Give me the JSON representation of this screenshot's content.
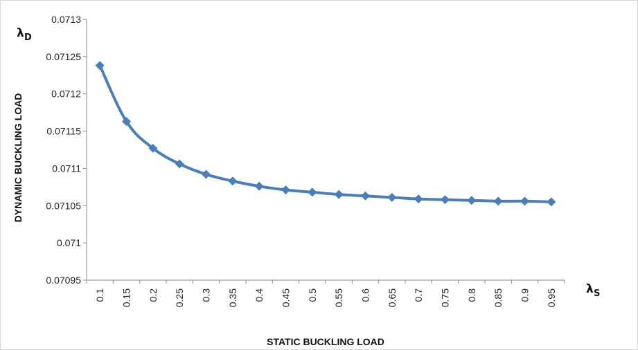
{
  "chart_data": {
    "type": "line",
    "xlabel": "STATIC BUCKLING LOAD",
    "ylabel": "DYNAMIC BUCKLING LOAD",
    "x_symbol": "λ",
    "x_symbol_sub": "S",
    "y_symbol": "λ",
    "y_symbol_sub": "D",
    "categories": [
      "0.1",
      "0.15",
      "0.2",
      "0.25",
      "0.3",
      "0.35",
      "0.4",
      "0.45",
      "0.5",
      "0.55",
      "0.6",
      "0.65",
      "0.7",
      "0.75",
      "0.8",
      "0.85",
      "0.9",
      "0.95"
    ],
    "y_ticks": [
      "0.07095",
      "0.071",
      "0.07105",
      "0.0711",
      "0.07115",
      "0.0712",
      "0.07125",
      "0.0713"
    ],
    "ylim": [
      0.07095,
      0.0713
    ],
    "grid": false,
    "series": [
      {
        "color": "#4a7ebb",
        "marker": "diamond",
        "values": [
          0.071238,
          0.071163,
          0.071127,
          0.071106,
          0.071092,
          0.071083,
          0.071076,
          0.071071,
          0.071068,
          0.071065,
          0.071063,
          0.071061,
          0.071059,
          0.071058,
          0.071057,
          0.071056,
          0.071056,
          0.071055
        ]
      }
    ]
  }
}
